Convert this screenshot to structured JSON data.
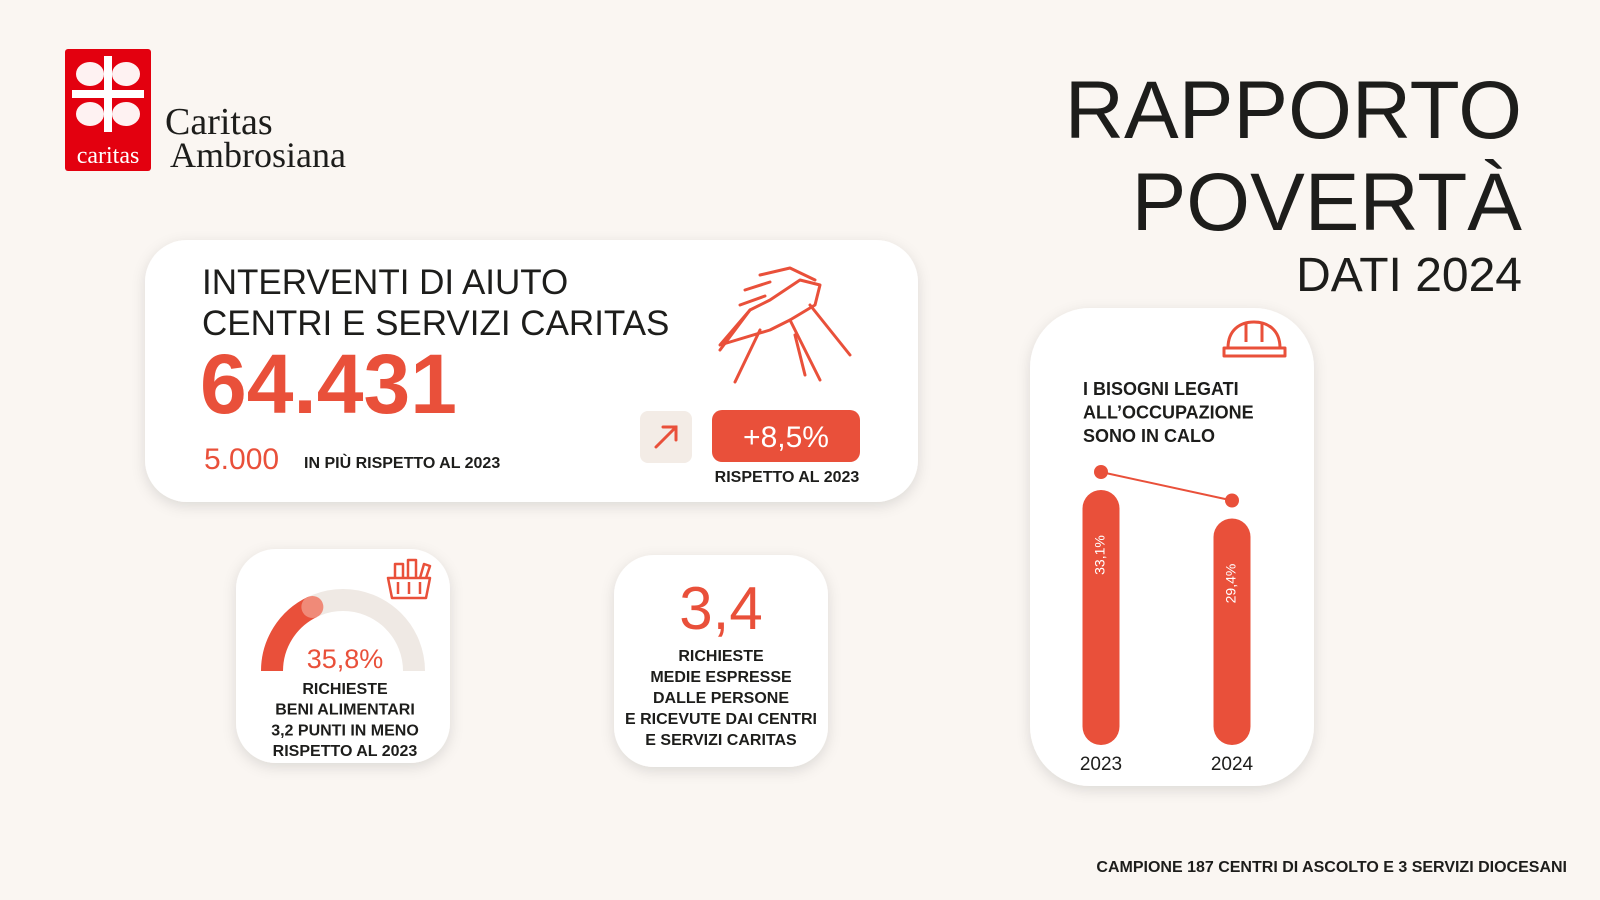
{
  "logo": {
    "badge": "caritas",
    "name_line1": "Caritas",
    "name_line2": "Ambrosiana"
  },
  "header": {
    "title_line1": "RAPPORTO",
    "title_line2": "POVERTÀ",
    "subtitle": "DATI 2024"
  },
  "interventions": {
    "title_lines": [
      "INTERVENTI DI AIUTO",
      "CENTRI  E SERVIZI CARITAS"
    ],
    "total": "64.431",
    "increase": "5.000",
    "increase_note": "IN PIÙ RISPETTO AL 2023",
    "change": "+8,5%",
    "change_note": "RISPETTO AL 2023"
  },
  "food_requests": {
    "value": 35.8,
    "value_label": "35,8%",
    "lines": [
      "RICHIESTE",
      "BENI ALIMENTARI",
      "3,2 PUNTI IN MENO",
      "RISPETTO AL 2023"
    ]
  },
  "average_requests": {
    "value": "3,4",
    "lines": [
      "RICHIESTE",
      "MEDIE ESPRESSE",
      "DALLE PERSONE",
      "E RICEVUTE DAI CENTRI",
      "E SERVIZI CARITAS"
    ]
  },
  "occupation": {
    "lines": [
      "I BISOGNI LEGATI",
      "ALL’OCCUPAZIONE",
      "SONO IN CALO"
    ],
    "categories": [
      "2023",
      "2024"
    ],
    "values": [
      33.1,
      29.4
    ],
    "value_labels": [
      "33,1%",
      "29,4%"
    ]
  },
  "footer": "CAMPIONE 187 CENTRI DI ASCOLTO E 3 SERVIZI DIOCESANI"
}
